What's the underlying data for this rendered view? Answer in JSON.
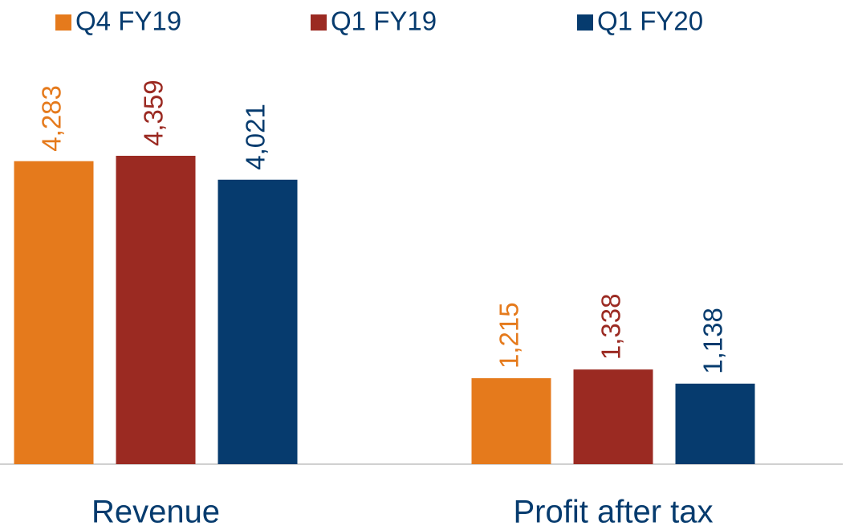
{
  "chart_data": {
    "type": "bar",
    "categories": [
      "Revenue",
      "Profit after tax"
    ],
    "series": [
      {
        "name": "Q4 FY19",
        "color": "#e57a1c",
        "values": [
          4283,
          1215
        ],
        "value_labels": [
          "4,283",
          "1,215"
        ]
      },
      {
        "name": "Q1 FY19",
        "color": "#9b2a22",
        "values": [
          4359,
          1338
        ],
        "value_labels": [
          "4,359",
          "1,338"
        ]
      },
      {
        "name": "Q1 FY20",
        "color": "#063b6e",
        "values": [
          4021,
          1138
        ],
        "value_labels": [
          "4,021",
          "1,138"
        ]
      }
    ]
  }
}
